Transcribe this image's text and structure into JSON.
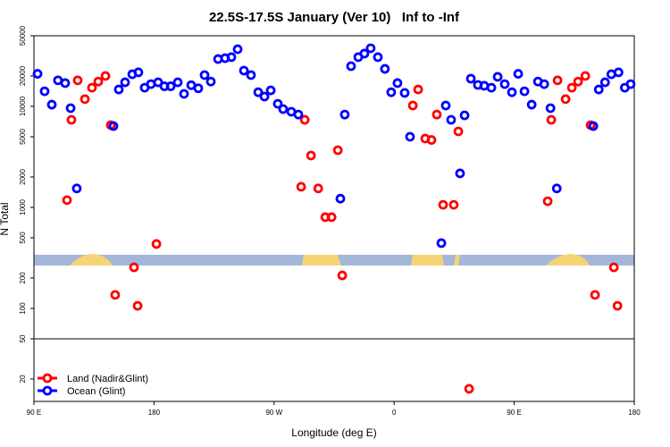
{
  "chart_data": {
    "type": "scatter",
    "title": "22.5S-17.5S January (Ver 10)   Inf to -Inf",
    "xlabel": "Longitude (deg E)",
    "ylabel": "N Total",
    "yscale": "log",
    "xlim": [
      90,
      540
    ],
    "ylim": [
      12,
      50000
    ],
    "xticks": [
      {
        "value": 90,
        "label": "90 E"
      },
      180,
      {
        "value": 270,
        "label": "90 W"
      },
      {
        "value": 360,
        "label": "0"
      },
      {
        "value": 450,
        "label": "90 E"
      },
      {
        "value": 540,
        "label": "180"
      }
    ],
    "yticks": [
      20,
      50,
      100,
      200,
      500,
      1000,
      2000,
      5000,
      10000,
      20000,
      50000
    ],
    "legend": "lower left",
    "series": [
      {
        "name": "Land (Nadir&Glint)",
        "color": "#ff0000",
        "x": [
          114.8,
          118.1,
          122.8,
          128.2,
          133.5,
          138.2,
          143.6,
          147.6,
          150.9,
          165,
          167.7,
          181.8,
          290.3,
          293,
          297.7,
          303.1,
          308.4,
          313.1,
          317.8,
          321.1,
          374,
          378,
          383.3,
          388,
          392,
          396.7,
          404.7,
          408.1,
          416.2,
          475.1,
          477.8,
          482.5,
          488.5,
          493.2,
          497.9,
          503.3,
          507.3,
          510.6,
          524.7,
          527.4
        ],
        "values": [
          1180,
          7360,
          18100,
          11800,
          15300,
          17600,
          20000,
          6520,
          136,
          255,
          106,
          434,
          1600,
          7360,
          3260,
          1540,
          800,
          800,
          3680,
          212,
          10200,
          14700,
          4800,
          4650,
          8300,
          1060,
          1060,
          5650,
          16,
          1150,
          7360,
          18100,
          11800,
          15300,
          17600,
          20000,
          6520,
          136,
          255,
          106
        ]
      },
      {
        "name": "Ocean (Glint)",
        "color": "#0000ff",
        "x": [
          92.7,
          98,
          103.4,
          108,
          113.4,
          117.5,
          122.1,
          149.6,
          153.6,
          158.3,
          163.7,
          168.3,
          173,
          177.7,
          183.1,
          187.8,
          192.5,
          197.8,
          202.5,
          207.9,
          213.2,
          217.9,
          222.6,
          228,
          233.3,
          238,
          242.7,
          247.4,
          252.7,
          258.1,
          262.8,
          267.5,
          272.8,
          276.8,
          282.9,
          288.2,
          319.7,
          323,
          327.7,
          333.1,
          337.7,
          342.4,
          347.8,
          353.1,
          357.8,
          362.5,
          367.9,
          371.9,
          395.4,
          398.7,
          402.7,
          409.4,
          412.8,
          417.5,
          422.8,
          427.5,
          432.9,
          437.6,
          442.9,
          448.3,
          453,
          457.7,
          463.1,
          467.8,
          472.5,
          477.2,
          481.9,
          509.3,
          513.4,
          518.1,
          522.8,
          528.2,
          532.9,
          537.3
        ],
        "values": [
          21000,
          14100,
          10400,
          18100,
          17000,
          9600,
          1540,
          6380,
          14700,
          17300,
          20800,
          21700,
          15300,
          16600,
          17300,
          15800,
          15800,
          17300,
          13300,
          16200,
          15100,
          20400,
          17600,
          29400,
          30000,
          30700,
          36800,
          22600,
          20400,
          13800,
          12500,
          14400,
          10600,
          9400,
          8850,
          8300,
          1220,
          8300,
          25000,
          30700,
          33300,
          37600,
          30700,
          23500,
          13800,
          17000,
          13600,
          5000,
          443,
          10200,
          7360,
          2170,
          8150,
          18800,
          16300,
          16000,
          15300,
          19600,
          16600,
          13800,
          21000,
          14100,
          10400,
          17600,
          16600,
          9600,
          1540,
          6380,
          14700,
          17300,
          20800,
          21700,
          15300,
          16600
        ]
      }
    ]
  }
}
